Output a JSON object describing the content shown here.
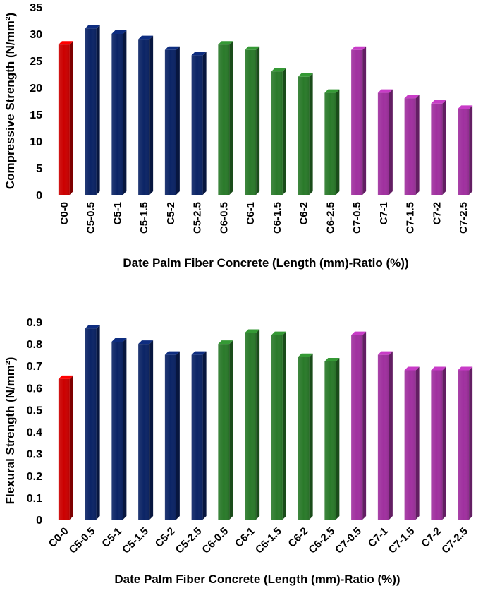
{
  "chart_data": [
    {
      "type": "bar",
      "ylabel": "Compressive Strength (N/mm²)",
      "xlabel": "Date Palm Fiber Concrete (Length (mm)-Ratio (%))",
      "ylim": [
        0,
        35
      ],
      "yticks": [
        0,
        5,
        10,
        15,
        20,
        25,
        30,
        35
      ],
      "categories": [
        "C0-0",
        "C5-0.5",
        "C5-1",
        "C5-1.5",
        "C5-2",
        "C5-2.5",
        "C6-0.5",
        "C6-1",
        "C6-1.5",
        "C6-2",
        "C6-2.5",
        "C7-0.5",
        "C7-1",
        "C7-1.5",
        "C7-2",
        "C7-2.5"
      ],
      "values": [
        28,
        31,
        30,
        29,
        27,
        26,
        28,
        27,
        23,
        22,
        19,
        27,
        19,
        18,
        17,
        16
      ],
      "colors": [
        "#cc0000",
        "#0b2466",
        "#0b2466",
        "#0b2466",
        "#0b2466",
        "#0b2466",
        "#2a7a2a",
        "#2a7a2a",
        "#2a7a2a",
        "#2a7a2a",
        "#2a7a2a",
        "#a0309f",
        "#a0309f",
        "#a0309f",
        "#a0309f",
        "#a0309f"
      ],
      "grid": false,
      "legend": "none"
    },
    {
      "type": "bar",
      "ylabel": "Flexural Strength (N/mm²)",
      "xlabel": "Date Palm Fiber Concrete (Length (mm)-Ratio (%))",
      "ylim": [
        0,
        0.9
      ],
      "yticks": [
        "0",
        "0.1",
        "0.2",
        "0.3",
        "0.4",
        "0.5",
        "0.6",
        "0.7",
        "0.8",
        "0.9"
      ],
      "categories": [
        "C0-0",
        "C5-0.5",
        "C5-1",
        "C5-1.5",
        "C5-2",
        "C5-2.5",
        "C6-0.5",
        "C6-1",
        "C6-1.5",
        "C6-2",
        "C6-2.5",
        "C7-0.5",
        "C7-1",
        "C7-1.5",
        "C7-2",
        "C7-2.5"
      ],
      "values": [
        0.64,
        0.87,
        0.81,
        0.8,
        0.75,
        0.75,
        0.8,
        0.85,
        0.84,
        0.74,
        0.72,
        0.84,
        0.75,
        0.68,
        0.68,
        0.68
      ],
      "colors": [
        "#cc0000",
        "#0b2466",
        "#0b2466",
        "#0b2466",
        "#0b2466",
        "#0b2466",
        "#2a7a2a",
        "#2a7a2a",
        "#2a7a2a",
        "#2a7a2a",
        "#2a7a2a",
        "#a0309f",
        "#a0309f",
        "#a0309f",
        "#a0309f",
        "#a0309f"
      ],
      "grid": false,
      "legend": "none"
    }
  ]
}
